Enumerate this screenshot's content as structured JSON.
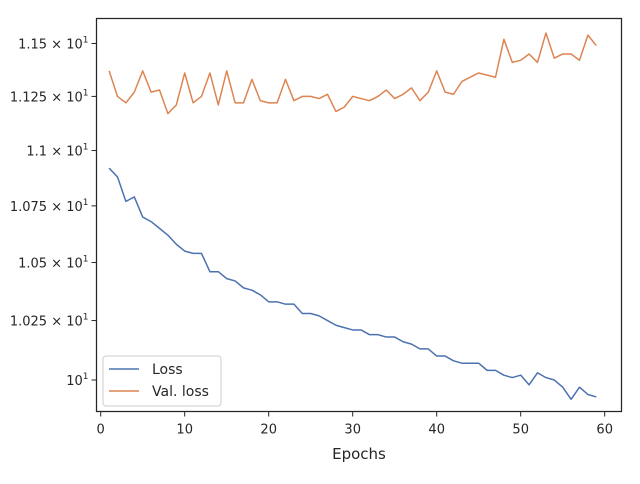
{
  "chart_data": {
    "type": "line",
    "title": "",
    "xlabel": "Epochs",
    "ylabel": "",
    "xlim": [
      -0.5,
      62
    ],
    "ylim": [
      9.87,
      11.62
    ],
    "yscale": "log",
    "grid": false,
    "legend_position": "lower-left",
    "x_ticks": [
      0,
      10,
      20,
      30,
      40,
      50,
      60
    ],
    "x_tick_labels": [
      "0",
      "10",
      "20",
      "30",
      "40",
      "50",
      "60"
    ],
    "y_ticks": [
      {
        "value": 10.0,
        "base": "10",
        "exp": "1"
      },
      {
        "value": 10.25,
        "base": "1.025 × 10",
        "exp": "1"
      },
      {
        "value": 10.5,
        "base": "1.05 × 10",
        "exp": "1"
      },
      {
        "value": 10.75,
        "base": "1.075 × 10",
        "exp": "1"
      },
      {
        "value": 11.0,
        "base": "1.1 × 10",
        "exp": "1"
      },
      {
        "value": 11.25,
        "base": "1.125 × 10",
        "exp": "1"
      },
      {
        "value": 11.5,
        "base": "1.15 × 10",
        "exp": "1"
      }
    ],
    "x": [
      1,
      2,
      3,
      4,
      5,
      6,
      7,
      8,
      9,
      10,
      11,
      12,
      13,
      14,
      15,
      16,
      17,
      18,
      19,
      20,
      21,
      22,
      23,
      24,
      25,
      26,
      27,
      28,
      29,
      30,
      31,
      32,
      33,
      34,
      35,
      36,
      37,
      38,
      39,
      40,
      41,
      42,
      43,
      44,
      45,
      46,
      47,
      48,
      49,
      50,
      51,
      52,
      53,
      54,
      55,
      56,
      57,
      58,
      59
    ],
    "series": [
      {
        "name": "Loss",
        "color": "#4c72b0",
        "values": [
          10.92,
          10.88,
          10.77,
          10.79,
          10.7,
          10.68,
          10.65,
          10.62,
          10.58,
          10.55,
          10.54,
          10.54,
          10.46,
          10.46,
          10.43,
          10.42,
          10.39,
          10.38,
          10.36,
          10.33,
          10.33,
          10.32,
          10.32,
          10.28,
          10.28,
          10.27,
          10.25,
          10.23,
          10.22,
          10.21,
          10.21,
          10.19,
          10.19,
          10.18,
          10.18,
          10.16,
          10.15,
          10.13,
          10.13,
          10.1,
          10.1,
          10.08,
          10.07,
          10.07,
          10.07,
          10.04,
          10.04,
          10.02,
          10.01,
          10.02,
          9.98,
          10.03,
          10.01,
          10.0,
          9.97,
          9.92,
          9.97,
          9.94,
          9.93
        ]
      },
      {
        "name": "Val. loss",
        "color": "#dd8452",
        "values": [
          11.37,
          11.25,
          11.22,
          11.27,
          11.37,
          11.27,
          11.28,
          11.17,
          11.21,
          11.36,
          11.22,
          11.25,
          11.36,
          11.21,
          11.37,
          11.22,
          11.22,
          11.33,
          11.23,
          11.22,
          11.22,
          11.33,
          11.23,
          11.25,
          11.25,
          11.24,
          11.26,
          11.18,
          11.2,
          11.25,
          11.24,
          11.23,
          11.25,
          11.28,
          11.24,
          11.26,
          11.29,
          11.23,
          11.27,
          11.37,
          11.27,
          11.26,
          11.32,
          11.34,
          11.36,
          11.35,
          11.34,
          11.52,
          11.41,
          11.42,
          11.45,
          11.41,
          11.55,
          11.43,
          11.45,
          11.45,
          11.42,
          11.54,
          11.49
        ]
      }
    ]
  }
}
